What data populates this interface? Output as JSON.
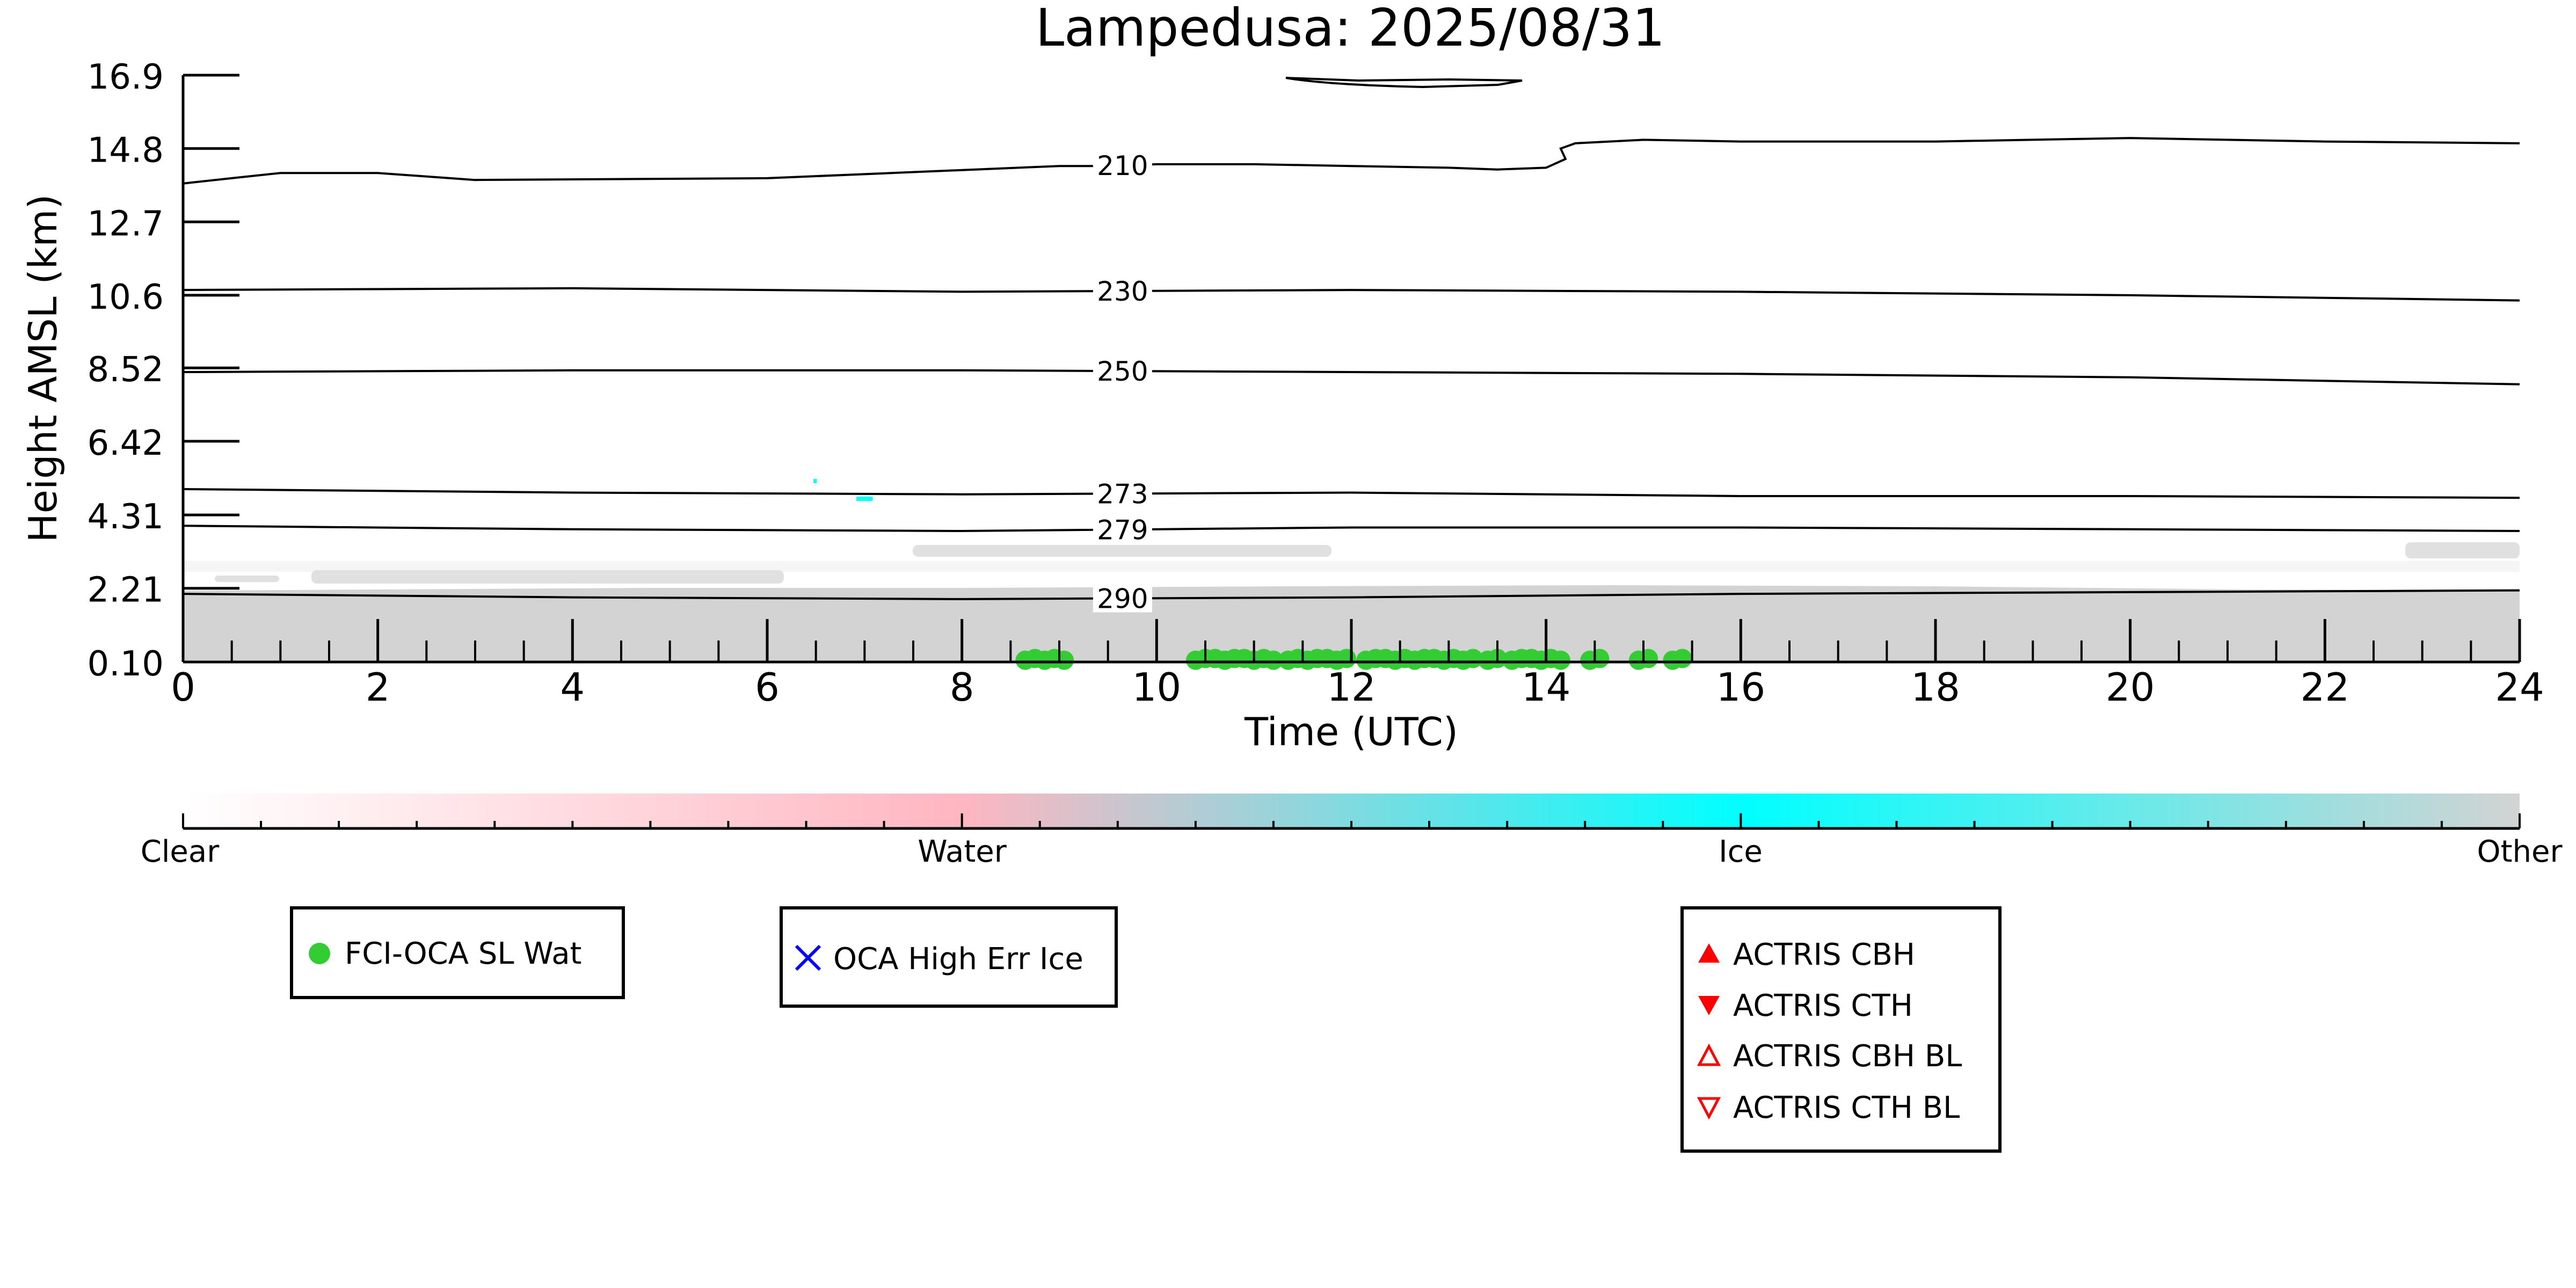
{
  "chart_data": {
    "type": "heatmap",
    "title": "Lampedusa: 2025/08/31",
    "xlabel": "Time (UTC)",
    "ylabel": "Height AMSL (km)",
    "xlim": [
      0,
      24
    ],
    "x_ticks": [
      "0",
      "2",
      "4",
      "6",
      "8",
      "10",
      "12",
      "14",
      "16",
      "18",
      "20",
      "22",
      "24"
    ],
    "y_ticks": [
      "0.10",
      "2.21",
      "4.31",
      "6.42",
      "8.52",
      "10.6",
      "12.7",
      "14.8",
      "16.9"
    ],
    "y_tick_values": [
      0.1,
      2.21,
      4.31,
      6.42,
      8.52,
      10.6,
      12.7,
      14.8,
      16.9
    ],
    "ylim": [
      0.1,
      16.9
    ],
    "colors": {
      "clear": "#ffffff",
      "water": "#ffb6c1",
      "ice": "#00ffff",
      "other": "#d3d3d3",
      "fci_oca_sl_wat": "#33cc33",
      "oca_high_err_ice": "#0000ff",
      "actris": "#ff0000"
    },
    "colorbar": {
      "labels": [
        "Clear",
        "Water",
        "Ice",
        "Other"
      ]
    },
    "isotherms": [
      {
        "label": "210",
        "x": [
          0,
          0.5,
          1,
          2,
          3,
          6,
          9,
          9.5,
          10,
          11,
          12,
          13,
          13.5,
          14,
          14.2,
          14.15,
          14.3,
          15,
          16,
          18,
          20,
          22,
          24
        ],
        "y": [
          13.8,
          13.95,
          14.1,
          14.1,
          13.9,
          13.95,
          14.3,
          14.3,
          14.35,
          14.35,
          14.3,
          14.25,
          14.2,
          14.25,
          14.5,
          14.8,
          14.95,
          15.05,
          15.0,
          15.0,
          15.1,
          15.0,
          14.95
        ]
      },
      {
        "label": "230",
        "x": [
          0,
          4,
          8,
          12,
          16,
          20,
          24
        ],
        "y": [
          10.75,
          10.8,
          10.7,
          10.75,
          10.7,
          10.6,
          10.45
        ]
      },
      {
        "label": "250",
        "x": [
          0,
          4,
          8,
          12,
          16,
          20,
          24
        ],
        "y": [
          8.4,
          8.45,
          8.45,
          8.4,
          8.35,
          8.25,
          8.05
        ]
      },
      {
        "label": "273",
        "x": [
          0,
          4,
          8,
          12,
          16,
          20,
          24
        ],
        "y": [
          5.05,
          4.95,
          4.9,
          4.95,
          4.85,
          4.85,
          4.8
        ]
      },
      {
        "label": "279",
        "x": [
          0,
          4,
          8,
          12,
          16,
          20,
          24
        ],
        "y": [
          4.0,
          3.9,
          3.85,
          3.95,
          3.95,
          3.9,
          3.85
        ]
      },
      {
        "label": "290",
        "x": [
          0,
          4,
          8,
          12,
          16,
          20,
          24
        ],
        "y": [
          2.05,
          1.95,
          1.9,
          1.95,
          2.05,
          2.1,
          2.15
        ]
      }
    ],
    "fci_oca_sl_wat": {
      "x": [
        8.65,
        8.75,
        8.85,
        8.95,
        9.05,
        10.4,
        10.5,
        10.6,
        10.7,
        10.8,
        10.9,
        11.0,
        11.1,
        11.2,
        11.35,
        11.45,
        11.55,
        11.65,
        11.75,
        11.85,
        11.95,
        12.15,
        12.25,
        12.35,
        12.45,
        12.55,
        12.65,
        12.75,
        12.85,
        12.95,
        13.05,
        13.15,
        13.25,
        13.4,
        13.5,
        13.65,
        13.75,
        13.85,
        13.95,
        14.05,
        14.15,
        14.45,
        14.55,
        14.95,
        15.05,
        15.3,
        15.4
      ],
      "y": [
        0.15,
        0.2,
        0.15,
        0.2,
        0.15,
        0.15,
        0.2,
        0.2,
        0.15,
        0.2,
        0.2,
        0.15,
        0.2,
        0.15,
        0.15,
        0.2,
        0.15,
        0.2,
        0.2,
        0.15,
        0.2,
        0.15,
        0.2,
        0.2,
        0.15,
        0.2,
        0.15,
        0.2,
        0.2,
        0.15,
        0.2,
        0.15,
        0.2,
        0.15,
        0.2,
        0.15,
        0.2,
        0.2,
        0.15,
        0.2,
        0.15,
        0.15,
        0.2,
        0.15,
        0.2,
        0.15,
        0.2
      ]
    },
    "legends": {
      "sl_wat": "FCI-OCA SL Wat",
      "high_err_ice": "OCA High Err Ice",
      "actris_cbh": "ACTRIS CBH",
      "actris_cth": "ACTRIS CTH",
      "actris_cbh_bl": "ACTRIS CBH BL",
      "actris_cth_bl": "ACTRIS CTH BL"
    }
  }
}
